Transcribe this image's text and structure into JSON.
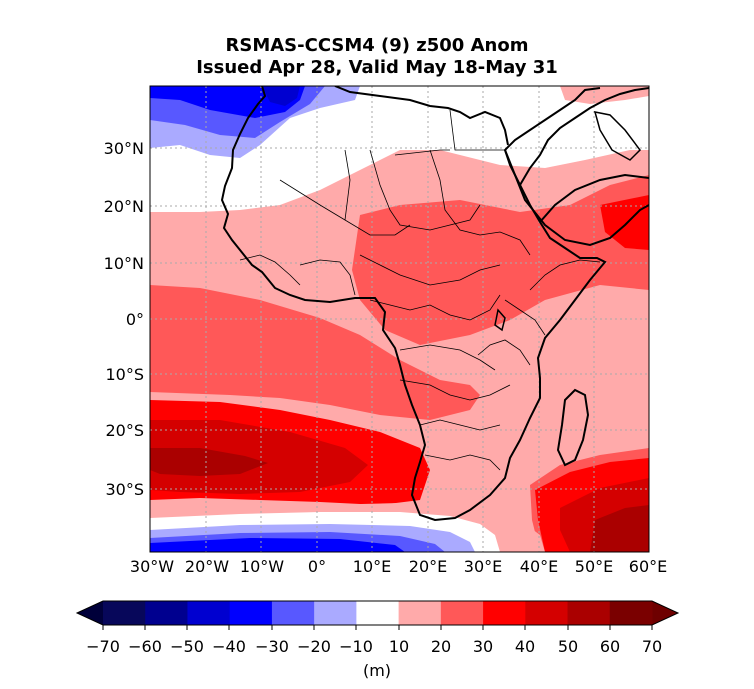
{
  "title_line1": "RSMAS-CCSM4 (9) z500 Anom",
  "title_line2": "Issued Apr 28, Valid May 18-May 31",
  "lon_ticks": [
    "30°W",
    "20°W",
    "10°W",
    "0°",
    "10°E",
    "20°E",
    "30°E",
    "40°E",
    "50°E",
    "60°E"
  ],
  "lat_ticks": [
    "30°N",
    "20°N",
    "10°N",
    "0°",
    "10°S",
    "20°S",
    "30°S"
  ],
  "colorbar": {
    "ticks": [
      "−70",
      "−60",
      "−50",
      "−40",
      "−30",
      "−20",
      "−10",
      "10",
      "20",
      "30",
      "40",
      "50",
      "60",
      "70"
    ],
    "colors": [
      "#07075a",
      "#00008f",
      "#0000d0",
      "#0000ff",
      "#5858ff",
      "#aaaaff",
      "#ffffff",
      "#ffaaaa",
      "#ff5858",
      "#ff0000",
      "#d40000",
      "#aa0000",
      "#7a0000"
    ],
    "under_color": "#00003a",
    "over_color": "#6e0000",
    "units": "(m)"
  },
  "map": {
    "lon_range": [
      -30,
      60
    ],
    "lat_range": [
      -40,
      40
    ],
    "gridlines": true
  }
}
